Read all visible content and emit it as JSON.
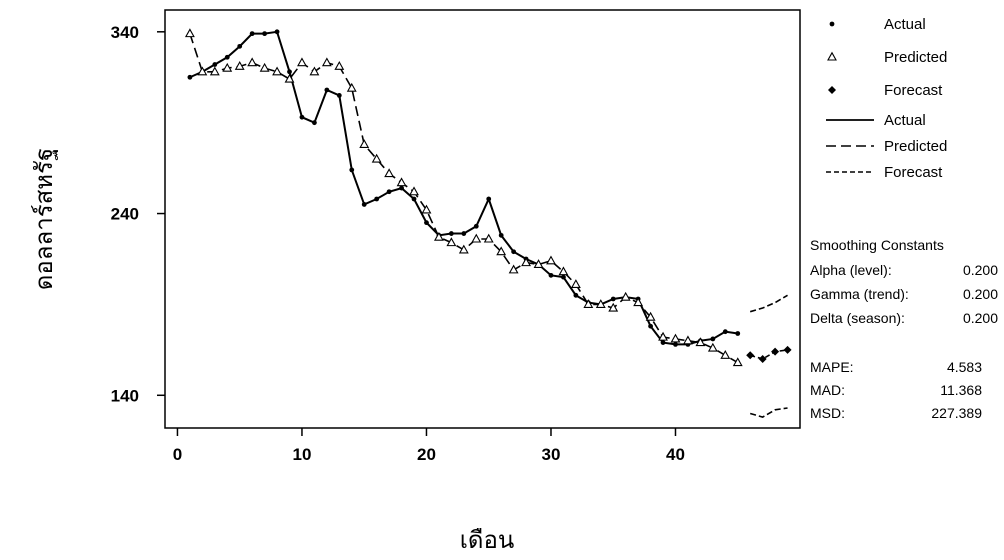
{
  "chart_data": {
    "type": "line",
    "xlabel": "เดือน",
    "ylabel": "ดอลลาร์สหรัฐ",
    "x_ticks": [
      "0",
      "10",
      "20",
      "30",
      "40"
    ],
    "y_ticks": [
      "140",
      "240",
      "340"
    ],
    "xlim": [
      -1,
      50
    ],
    "ylim": [
      122,
      352
    ],
    "series": [
      {
        "name": "Actual",
        "style": "solid",
        "marker": "dot",
        "x": [
          1,
          2,
          3,
          4,
          5,
          6,
          7,
          8,
          9,
          10,
          11,
          12,
          13,
          14,
          15,
          16,
          17,
          18,
          19,
          20,
          21,
          22,
          23,
          24,
          25,
          26,
          27,
          28,
          29,
          30,
          31,
          32,
          33,
          34,
          35,
          36,
          37,
          38,
          39,
          40,
          41,
          42,
          43,
          44,
          45
        ],
        "values": [
          315,
          318,
          322,
          326,
          332,
          339,
          339,
          340,
          318,
          293,
          290,
          308,
          305,
          264,
          245,
          248,
          252,
          254,
          248,
          235,
          228,
          229,
          229,
          233,
          248,
          228,
          219,
          215,
          212,
          206,
          205,
          195,
          191,
          190,
          193,
          194,
          193,
          178,
          169,
          168,
          168,
          170,
          171,
          175,
          174
        ]
      },
      {
        "name": "Predicted",
        "style": "dashed",
        "marker": "triangle",
        "x": [
          1,
          2,
          3,
          4,
          5,
          6,
          7,
          8,
          9,
          10,
          11,
          12,
          13,
          14,
          15,
          16,
          17,
          18,
          19,
          20,
          21,
          22,
          23,
          24,
          25,
          26,
          27,
          28,
          29,
          30,
          31,
          32,
          33,
          34,
          35,
          36,
          37,
          38,
          39,
          40,
          41,
          42,
          43,
          44,
          45
        ],
        "values": [
          339,
          318,
          318,
          320,
          321,
          323,
          320,
          318,
          314,
          323,
          318,
          323,
          321,
          309,
          278,
          270,
          262,
          257,
          252,
          242,
          227,
          224,
          220,
          226,
          226,
          219,
          209,
          213,
          212,
          214,
          208,
          201,
          190,
          190,
          188,
          194,
          191,
          183,
          172,
          171,
          170,
          169,
          166,
          162,
          158
        ]
      },
      {
        "name": "Forecast",
        "style": "dotted-dash",
        "marker": "diamond",
        "x": [
          46,
          47,
          48,
          49
        ],
        "values": [
          162,
          160,
          164,
          165
        ],
        "upper": [
          186,
          188,
          191,
          195
        ],
        "lower": [
          130,
          128,
          132,
          133
        ]
      }
    ],
    "legend": {
      "position": "top-right",
      "markers": [
        {
          "label": "Actual",
          "marker": "dot"
        },
        {
          "label": "Predicted",
          "marker": "triangle"
        },
        {
          "label": "Forecast",
          "marker": "diamond"
        }
      ],
      "lines": [
        {
          "label": "Actual",
          "style": "solid"
        },
        {
          "label": "Predicted",
          "style": "dashed"
        },
        {
          "label": "Forecast",
          "style": "dotted-dash"
        }
      ]
    },
    "stats": {
      "heading": "Smoothing Constants",
      "constants": [
        {
          "label": "Alpha (level):",
          "value": "0.200"
        },
        {
          "label": "Gamma (trend):",
          "value": "0.200"
        },
        {
          "label": "Delta (season):",
          "value": "0.200"
        }
      ],
      "measures": [
        {
          "label": "MAPE:",
          "value": "4.583"
        },
        {
          "label": "MAD:",
          "value": "11.368"
        },
        {
          "label": "MSD:",
          "value": "227.389"
        }
      ]
    }
  }
}
